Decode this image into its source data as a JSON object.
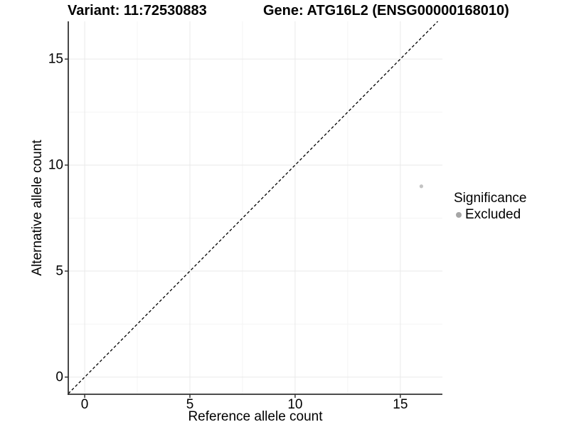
{
  "chart_data": {
    "type": "scatter",
    "title_variant": "Variant: 11:72530883",
    "title_gene": "Gene: ATG16L2 (ENSG00000168010)",
    "xlabel": "Reference allele count",
    "ylabel": "Alternative allele count",
    "xlim": [
      -0.78,
      17.0
    ],
    "ylim": [
      -0.81,
      16.78
    ],
    "xticks": [
      0,
      5,
      10,
      15
    ],
    "yticks": [
      0,
      5,
      10,
      15
    ],
    "minor_xticks": [
      2.5,
      7.5,
      12.5
    ],
    "minor_yticks": [
      2.5,
      7.5,
      12.5
    ],
    "grid": "major+minor",
    "series": [
      {
        "name": "Excluded",
        "points": [
          {
            "x": 16,
            "y": 9
          }
        ],
        "color": "#c3c3c3"
      }
    ],
    "reference_line": {
      "kind": "identity y=x",
      "style": "dashed",
      "color": "#000000"
    },
    "legend": {
      "title": "Significance",
      "position": "right",
      "entries": [
        {
          "label": "Excluded",
          "color": "#a6a6a6"
        }
      ]
    },
    "colors": {
      "grid_major": "#e9e9e9",
      "grid_minor": "#f4f4f4",
      "axis": "#333333",
      "text": "#000000",
      "background": "#ffffff"
    }
  }
}
